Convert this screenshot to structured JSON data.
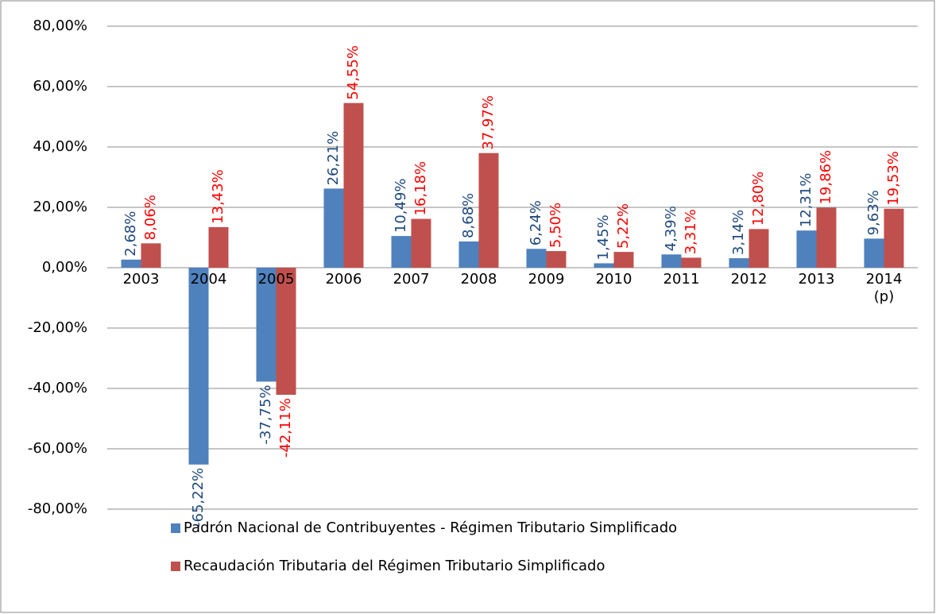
{
  "chart_data": {
    "type": "bar",
    "categories": [
      "2003",
      "2004",
      "2005",
      "2006",
      "2007",
      "2008",
      "2009",
      "2010",
      "2011",
      "2012",
      "2013",
      "2014 (p)"
    ],
    "series": [
      {
        "name": "Padrón Nacional de Contribuyentes - Régimen Tributario Simplificado",
        "color": "#4f81bd",
        "label_color": "#1f497d",
        "values": [
          2.68,
          -65.22,
          -37.75,
          26.21,
          10.49,
          8.68,
          6.24,
          1.45,
          4.39,
          3.14,
          12.31,
          9.63
        ],
        "value_labels": [
          "2,68%",
          "-65,22%",
          "-37,75%",
          "26,21%",
          "10,49%",
          "8,68%",
          "6,24%",
          "1,45%",
          "4,39%",
          "3,14%",
          "12,31%",
          "9,63%"
        ]
      },
      {
        "name": "Recaudación Tributaria del Régimen Tributario Simplificado",
        "color": "#c0504d",
        "label_color": "#ff0000",
        "values": [
          8.06,
          13.43,
          -42.11,
          54.55,
          16.18,
          37.97,
          5.5,
          5.22,
          3.31,
          12.8,
          19.86,
          19.53
        ],
        "value_labels": [
          "8,06%",
          "13,43%",
          "-42,11%",
          "54,55%",
          "16,18%",
          "37,97%",
          "5,50%",
          "5,22%",
          "3,31%",
          "12,80%",
          "19,86%",
          "19,53%"
        ]
      }
    ],
    "ylim": [
      -80,
      80
    ],
    "yticks": [
      {
        "value": -80,
        "label": "-80,00%"
      },
      {
        "value": -60,
        "label": "-60,00%"
      },
      {
        "value": -40,
        "label": "-40,00%"
      },
      {
        "value": -20,
        "label": "-20,00%"
      },
      {
        "value": 0,
        "label": "0,00%"
      },
      {
        "value": 20,
        "label": "20,00%"
      },
      {
        "value": 40,
        "label": "40,00%"
      },
      {
        "value": 60,
        "label": "60,00%"
      },
      {
        "value": 80,
        "label": "80,00%"
      }
    ],
    "grid": true
  }
}
